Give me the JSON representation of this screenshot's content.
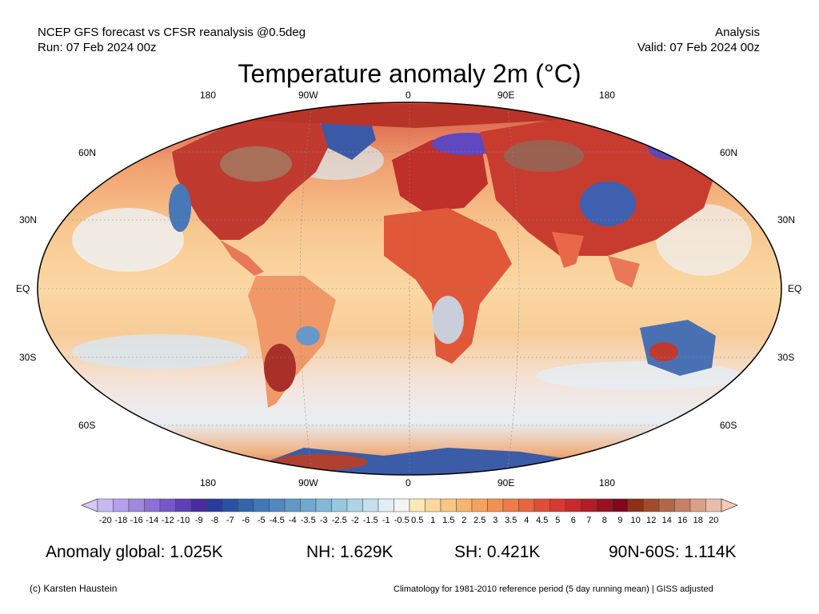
{
  "header": {
    "left_line1": "NCEP GFS forecast vs CFSR reanalysis @0.5deg",
    "left_line2": "Run: 07 Feb 2024 00z",
    "right_line1": "Analysis",
    "right_line2": "Valid: 07 Feb 2024 00z"
  },
  "title": "Temperature anomaly 2m (°C)",
  "axes": {
    "top_lon": [
      "180",
      "90W",
      "0",
      "90E",
      "180"
    ],
    "bottom_lon": [
      "180",
      "90W",
      "0",
      "90E",
      "180"
    ],
    "lat_left": [
      "60N",
      "30N",
      "EQ",
      "30S",
      "60S"
    ],
    "lat_right": [
      "60N",
      "30N",
      "EQ",
      "30S",
      "60S"
    ]
  },
  "colorbar": {
    "ticks": [
      "-20",
      "-18",
      "-16",
      "-14",
      "-12",
      "-10",
      "-9",
      "-8",
      "-7",
      "-6",
      "-5",
      "-4.5",
      "-4",
      "-3.5",
      "-3",
      "-2.5",
      "-2",
      "-1.5",
      "-1",
      "-0.5",
      "0.5",
      "1",
      "1.5",
      "2",
      "2.5",
      "3",
      "3.5",
      "4",
      "4.5",
      "5",
      "6",
      "7",
      "8",
      "9",
      "10",
      "12",
      "14",
      "16",
      "18",
      "20"
    ],
    "colors": [
      "#c8b8f4",
      "#b4a0ec",
      "#a088e0",
      "#8c70d8",
      "#7458c8",
      "#5c40b4",
      "#482ca0",
      "#283c9c",
      "#2c50a4",
      "#3464ac",
      "#4078b8",
      "#5088c0",
      "#6098c8",
      "#70a8d0",
      "#84b8d8",
      "#98c8e0",
      "#acd4e8",
      "#c4e0ee",
      "#e0eef6",
      "#f4f4f4",
      "#fde8b8",
      "#fbd89c",
      "#f9c684",
      "#f7b46e",
      "#f5a25e",
      "#f29050",
      "#ee7c46",
      "#e8663e",
      "#e04e38",
      "#d63a32",
      "#c82a2c",
      "#b41c26",
      "#9c1020",
      "#800818",
      "#8c3018",
      "#a04c2c",
      "#b46648",
      "#c88064",
      "#d8a088",
      "#e8bca8"
    ]
  },
  "stats": {
    "global": "Anomaly global: 1.025K",
    "nh": "NH: 1.629K",
    "sh": "SH: 0.421K",
    "arctic": "90N-60S: 1.114K"
  },
  "footer": {
    "credit": "(c) Karsten Haustein",
    "note": "Climatology for 1981-2010 reference period (5 day running mean) | GISS adjusted"
  }
}
